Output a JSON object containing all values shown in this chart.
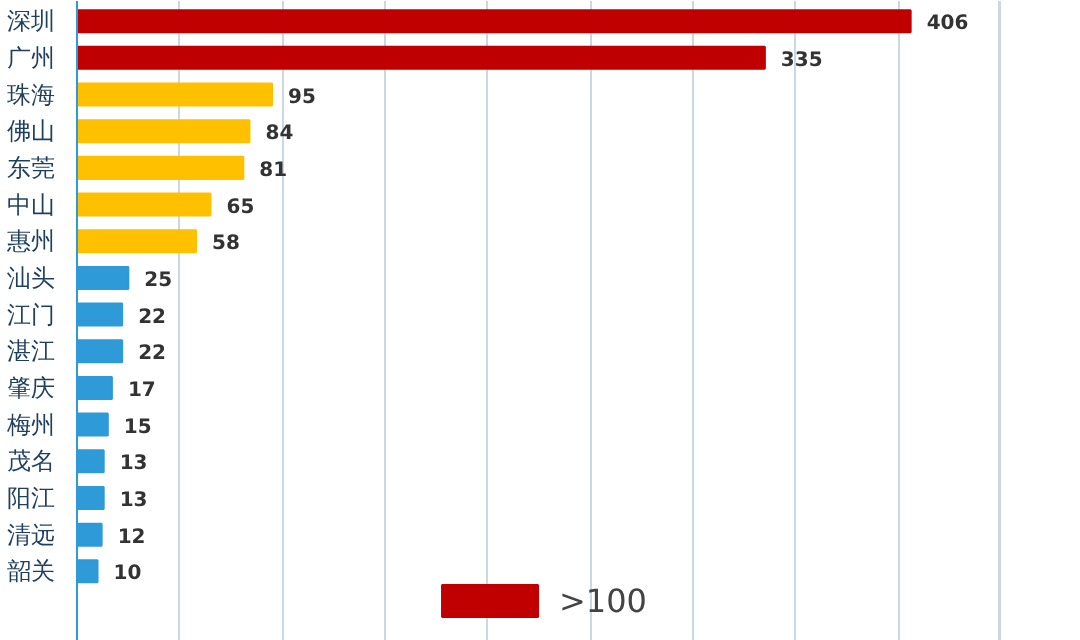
{
  "chart_data": {
    "type": "bar",
    "orientation": "horizontal",
    "categories": [
      "深圳",
      "广州",
      "珠海",
      "佛山",
      "东莞",
      "中山",
      "惠州",
      "汕头",
      "江门",
      "湛江",
      "肇庆",
      "梅州",
      "茂名",
      "阳江",
      "清远",
      "韶关"
    ],
    "series": [
      {
        "name": ">100",
        "color": "#c00000",
        "values": [
          406,
          335,
          null,
          null,
          null,
          null,
          null,
          null,
          null,
          null,
          null,
          null,
          null,
          null,
          null,
          null
        ]
      },
      {
        "color": "#ffc000",
        "values": [
          null,
          null,
          95,
          84,
          81,
          65,
          58,
          null,
          null,
          null,
          null,
          null,
          null,
          null,
          null,
          null
        ]
      },
      {
        "color": "#2e9ad8",
        "values": [
          null,
          null,
          null,
          null,
          null,
          null,
          null,
          25,
          22,
          22,
          17,
          15,
          13,
          13,
          12,
          10
        ]
      }
    ],
    "xlim": [
      0,
      450
    ],
    "xticks": [
      {
        "value": 0,
        "label": null
      },
      {
        "value": 50,
        "label": null
      },
      {
        "value": 100,
        "label": null
      },
      {
        "value": 150,
        "label": null
      },
      {
        "value": 200,
        "label": null
      },
      {
        "value": 250,
        "label": null
      },
      {
        "value": 300,
        "label": null
      },
      {
        "value": 350,
        "label": null
      },
      {
        "value": 400,
        "label": null
      },
      {
        "value": 450,
        "label": null
      }
    ],
    "tick_labels": "y",
    "grid": "x",
    "data_labels": true,
    "legend": "bottom"
  }
}
